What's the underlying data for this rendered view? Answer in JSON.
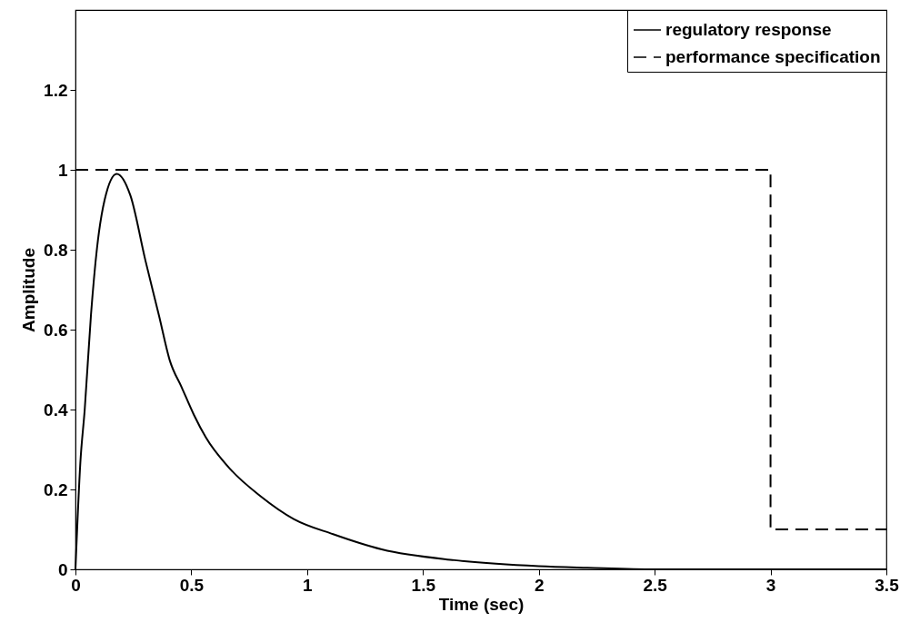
{
  "chart_data": {
    "type": "line",
    "xlabel": "Time (sec)",
    "ylabel": "Amplitude",
    "xlim": [
      0,
      3.5
    ],
    "xticks": [
      0,
      0.5,
      1,
      1.5,
      2,
      2.5,
      3,
      3.5
    ],
    "ylim": [
      0,
      1.4
    ],
    "yticks": [
      0,
      0.2,
      0.4,
      0.6,
      0.8,
      1,
      1.2
    ],
    "legend": "top right",
    "series": [
      {
        "name": "regulatory response",
        "color": "#000000",
        "line_style": "solid",
        "x": [
          0,
          0.021,
          0.04,
          0.067,
          0.093,
          0.126,
          0.178,
          0.237,
          0.302,
          0.361,
          0.407,
          0.459,
          0.511,
          0.563,
          0.668,
          0.799,
          0.942,
          1.112,
          1.322,
          1.635,
          2.0,
          2.21,
          2.5,
          3.0,
          3.5
        ],
        "values": [
          0,
          0.266,
          0.4,
          0.637,
          0.804,
          0.925,
          0.99,
          0.936,
          0.773,
          0.634,
          0.523,
          0.455,
          0.387,
          0.33,
          0.251,
          0.183,
          0.126,
          0.088,
          0.05,
          0.023,
          0.008,
          0.004,
          0,
          0,
          0
        ]
      },
      {
        "name": "performance specification",
        "color": "#000000",
        "line_style": "dashed",
        "x": [
          0,
          3,
          3,
          3.5
        ],
        "values": [
          1,
          1,
          0.1,
          0.1
        ]
      }
    ]
  }
}
